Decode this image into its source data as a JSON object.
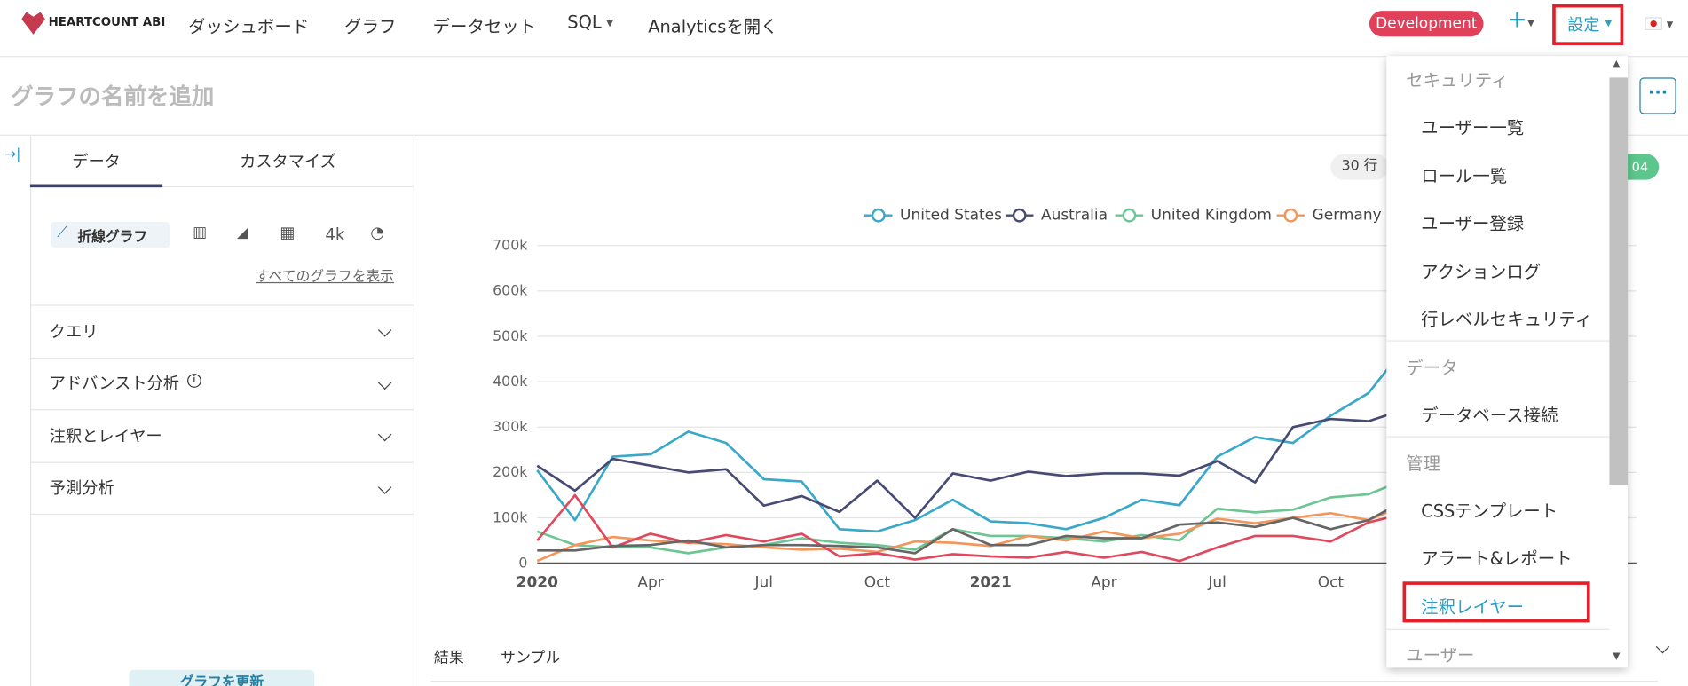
{
  "nav": {
    "logo": "HEARTCOUNT ABI",
    "items": [
      "ダッシュボード",
      "グラフ",
      "データセット",
      "SQL",
      "Analyticsを開く"
    ],
    "environment": "Development",
    "settings": "設定"
  },
  "header": {
    "title_placeholder": "グラフの名前を追加"
  },
  "sidebar": {
    "tabs": [
      "データ",
      "カスタマイズ"
    ],
    "chart_type": "折線グラフ",
    "chart_type_option": "4k",
    "show_all": "すべてのグラフを表示",
    "sections": [
      "クエリ",
      "アドバンスト分析",
      "注釈とレイヤー",
      "予測分析"
    ],
    "button": "グラフを更新"
  },
  "result": {
    "row_count": "30 行",
    "badge": "04",
    "tabs": [
      "結果",
      "サンプル"
    ]
  },
  "chart_data": {
    "type": "line",
    "categories": [
      "2020",
      null,
      null,
      "Apr",
      null,
      null,
      "Jul",
      null,
      null,
      "Oct",
      null,
      null,
      "2021",
      null,
      null,
      "Apr",
      null,
      null,
      "Jul",
      null,
      null,
      "Oct",
      null,
      null
    ],
    "series": [
      {
        "name": "United States",
        "color": "#3aa8c8",
        "values": [
          205000,
          95000,
          235000,
          240000,
          290000,
          265000,
          185000,
          180000,
          75000,
          70000,
          95000,
          140000,
          92000,
          88000,
          75000,
          100000,
          140000,
          128000,
          235000,
          278000,
          265000,
          325000,
          375000,
          480000
        ]
      },
      {
        "name": "Australia",
        "color": "#474b72",
        "values": [
          215000,
          160000,
          230000,
          215000,
          200000,
          207000,
          127000,
          148000,
          113000,
          182000,
          100000,
          198000,
          182000,
          202000,
          192000,
          198000,
          198000,
          193000,
          225000,
          178000,
          300000,
          318000,
          313000,
          340000
        ]
      },
      {
        "name": "United Kingdom",
        "color": "#6dc593",
        "values": [
          70000,
          40000,
          35000,
          35000,
          22000,
          35000,
          40000,
          55000,
          45000,
          40000,
          30000,
          75000,
          60000,
          60000,
          55000,
          48000,
          62000,
          50000,
          120000,
          112000,
          118000,
          145000,
          152000,
          185000
        ]
      },
      {
        "name": "Germany",
        "color": "#f2965b",
        "values": [
          5000,
          40000,
          58000,
          50000,
          45000,
          42000,
          35000,
          30000,
          32000,
          25000,
          48000,
          45000,
          38000,
          60000,
          50000,
          70000,
          55000,
          65000,
          98000,
          88000,
          100000,
          110000,
          95000,
          130000
        ]
      },
      {
        "color": "#e0485d",
        "values": [
          50000,
          150000,
          35000,
          65000,
          45000,
          62000,
          48000,
          65000,
          15000,
          22000,
          8000,
          20000,
          15000,
          12000,
          25000,
          12000,
          25000,
          5000,
          35000,
          60000,
          60000,
          48000,
          90000,
          110000
        ]
      },
      {
        "color": "#666666",
        "values": [
          28000,
          28000,
          38000,
          40000,
          50000,
          35000,
          40000,
          40000,
          38000,
          35000,
          22000,
          75000,
          40000,
          40000,
          60000,
          55000,
          55000,
          85000,
          90000,
          80000,
          100000,
          75000,
          95000,
          140000
        ]
      }
    ],
    "ylim": [
      0,
      700000
    ],
    "yticks": [
      0,
      {
        "value": 100000,
        "label": "100k"
      },
      {
        "value": 200000,
        "label": "200k"
      },
      {
        "value": 300000,
        "label": "300k"
      },
      {
        "value": 400000,
        "label": "400k"
      },
      {
        "value": 500000,
        "label": "500k"
      },
      {
        "value": 600000,
        "label": "600k"
      },
      {
        "value": 700000,
        "label": "700k"
      }
    ],
    "grid": true
  },
  "menu": {
    "sections": [
      {
        "title": "セキュリティ",
        "items": [
          "ユーザー一覧",
          "ロール一覧",
          "ユーザー登録",
          "アクションログ",
          "行レベルセキュリティ"
        ]
      },
      {
        "title": "データ",
        "items": [
          "データベース接続"
        ]
      },
      {
        "title": "管理",
        "items": [
          "CSSテンプレート",
          "アラート&レポート",
          "注釈レイヤー"
        ]
      },
      {
        "title": "ユーザー"
      }
    ]
  }
}
